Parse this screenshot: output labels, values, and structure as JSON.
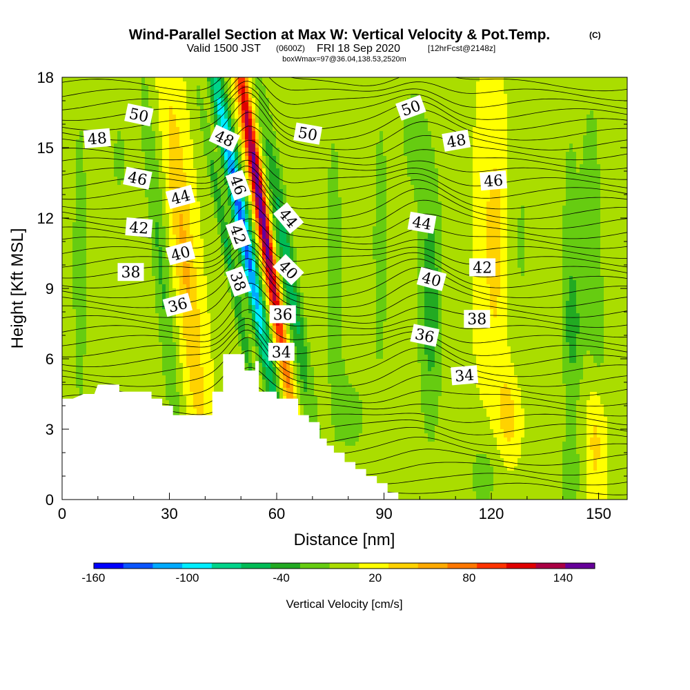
{
  "chart_data": {
    "type": "heatmap",
    "title": "Wind-Parallel Section at Max W: Vertical Velocity & Pot.Temp.",
    "title_mark": "(C)",
    "subtitle_valid": "Valid 1500 JST",
    "subtitle_z": "(0600Z)",
    "subtitle_date": "FRI 18 Sep 2020",
    "subtitle_fcst": "[12hrFcst@2148z]",
    "subtitle2": "boxWmax=97@36.04,138.53,2520m",
    "xlabel": "Distance [nm]",
    "ylabel": "Height [Kft MSL]",
    "xlim": [
      0,
      158
    ],
    "ylim": [
      0,
      18
    ],
    "x_ticks": [
      "0",
      "30",
      "60",
      "90",
      "120",
      "150"
    ],
    "x_tick_values": [
      0,
      30,
      60,
      90,
      120,
      150
    ],
    "y_ticks": [
      "0",
      "3",
      "6",
      "9",
      "12",
      "15",
      "18"
    ],
    "y_tick_values": [
      0,
      3,
      6,
      9,
      12,
      15,
      18
    ],
    "colorbar": {
      "label": "Vertical Velocity [cm/s]",
      "tick_labels": [
        "-160",
        "-100",
        "-40",
        "20",
        "80",
        "140"
      ],
      "tick_values": [
        -160,
        -100,
        -40,
        20,
        80,
        140
      ],
      "levels": [
        -160,
        -140,
        -120,
        -100,
        -80,
        -60,
        -40,
        -20,
        0,
        20,
        40,
        60,
        80,
        100,
        120,
        140,
        160
      ],
      "colors": [
        "#0000ff",
        "#0a55ff",
        "#00aaff",
        "#00eeff",
        "#00d48a",
        "#00bb55",
        "#22aa22",
        "#66cc11",
        "#aadd00",
        "#ffff00",
        "#ffd200",
        "#ffaa00",
        "#ff7700",
        "#ff3300",
        "#e00000",
        "#aa0044",
        "#660099"
      ]
    },
    "contour_labels": [
      {
        "text": "50",
        "x": 21.5,
        "y": 16.4,
        "angle": 12
      },
      {
        "text": "48",
        "x": 9.8,
        "y": 15.4,
        "angle": -5
      },
      {
        "text": "46",
        "x": 21.1,
        "y": 13.7,
        "angle": 12
      },
      {
        "text": "44",
        "x": 33.1,
        "y": 12.9,
        "angle": -15
      },
      {
        "text": "42",
        "x": 21.5,
        "y": 11.6,
        "angle": 5
      },
      {
        "text": "40",
        "x": 33.1,
        "y": 10.5,
        "angle": -15
      },
      {
        "text": "38",
        "x": 19.2,
        "y": 9.7,
        "angle": 0
      },
      {
        "text": "36",
        "x": 32.3,
        "y": 8.3,
        "angle": -15
      },
      {
        "text": "48",
        "x": 45.4,
        "y": 15.4,
        "angle": 25
      },
      {
        "text": "46",
        "x": 49.3,
        "y": 13.4,
        "angle": 70
      },
      {
        "text": "42",
        "x": 49.3,
        "y": 11.3,
        "angle": 70
      },
      {
        "text": "38",
        "x": 49.3,
        "y": 9.3,
        "angle": 70
      },
      {
        "text": "50",
        "x": 68.7,
        "y": 15.6,
        "angle": 10
      },
      {
        "text": "44",
        "x": 63.3,
        "y": 12.0,
        "angle": 50
      },
      {
        "text": "40",
        "x": 63.3,
        "y": 9.8,
        "angle": 45
      },
      {
        "text": "36",
        "x": 61.7,
        "y": 7.9,
        "angle": 0
      },
      {
        "text": "34",
        "x": 61.3,
        "y": 6.3,
        "angle": 0
      },
      {
        "text": "50",
        "x": 97.5,
        "y": 16.7,
        "angle": -20
      },
      {
        "text": "48",
        "x": 110.2,
        "y": 15.3,
        "angle": -10
      },
      {
        "text": "46",
        "x": 120.6,
        "y": 13.6,
        "angle": -5
      },
      {
        "text": "44",
        "x": 100.6,
        "y": 11.8,
        "angle": 10
      },
      {
        "text": "42",
        "x": 117.5,
        "y": 9.9,
        "angle": 0
      },
      {
        "text": "40",
        "x": 103.3,
        "y": 9.4,
        "angle": 15
      },
      {
        "text": "38",
        "x": 116.0,
        "y": 7.7,
        "angle": 0
      },
      {
        "text": "36",
        "x": 101.4,
        "y": 7.0,
        "angle": 12
      },
      {
        "text": "34",
        "x": 112.5,
        "y": 5.3,
        "angle": -5
      }
    ],
    "terrain_profile": [
      [
        0,
        4.3
      ],
      [
        3,
        4.3
      ],
      [
        6,
        4.5
      ],
      [
        9,
        4.5
      ],
      [
        10,
        4.9
      ],
      [
        16,
        4.9
      ],
      [
        16,
        4.6
      ],
      [
        25,
        4.6
      ],
      [
        25,
        4.3
      ],
      [
        28,
        4.3
      ],
      [
        28,
        4.0
      ],
      [
        31,
        4.0
      ],
      [
        31,
        3.6
      ],
      [
        42,
        3.6
      ],
      [
        42,
        4.6
      ],
      [
        45,
        4.6
      ],
      [
        45,
        6.2
      ],
      [
        51,
        6.2
      ],
      [
        51,
        5.5
      ],
      [
        54,
        5.5
      ],
      [
        54,
        5.9
      ],
      [
        55,
        5.9
      ],
      [
        55,
        4.6
      ],
      [
        60,
        4.6
      ],
      [
        60,
        4.3
      ],
      [
        66,
        4.3
      ],
      [
        66,
        3.6
      ],
      [
        69,
        3.6
      ],
      [
        69,
        3.3
      ],
      [
        72,
        3.3
      ],
      [
        72,
        2.6
      ],
      [
        74,
        2.6
      ],
      [
        74,
        2.3
      ],
      [
        76,
        2.3
      ],
      [
        76,
        2.0
      ],
      [
        79,
        2.0
      ],
      [
        79,
        1.6
      ],
      [
        82,
        1.6
      ],
      [
        82,
        1.3
      ],
      [
        85,
        1.3
      ],
      [
        85,
        1.0
      ],
      [
        88,
        1.0
      ],
      [
        88,
        0.7
      ],
      [
        91,
        0.7
      ],
      [
        91,
        0.3
      ],
      [
        94,
        0.3
      ],
      [
        94,
        0
      ],
      [
        0,
        0
      ]
    ],
    "velocity_features": [
      {
        "x": 50.0,
        "y": 12.0,
        "sx": 2.2,
        "sy": 8.0,
        "tilt": -1.2,
        "value": -150
      },
      {
        "x": 55.5,
        "y": 12.5,
        "sx": 1.8,
        "sy": 8.0,
        "tilt": -1.0,
        "value": 160
      },
      {
        "x": 47.0,
        "y": 10.0,
        "sx": 1.5,
        "sy": 7.0,
        "tilt": -1.2,
        "value": -60
      },
      {
        "x": 63.0,
        "y": 10.0,
        "sx": 2.5,
        "sy": 7.0,
        "tilt": -1.0,
        "value": -70
      },
      {
        "x": 34.5,
        "y": 10.0,
        "sx": 3.0,
        "sy": 8.0,
        "tilt": -0.6,
        "value": 45
      },
      {
        "x": 27.5,
        "y": 10.0,
        "sx": 2.5,
        "sy": 9.0,
        "tilt": -0.6,
        "value": -40
      },
      {
        "x": 5.0,
        "y": 10.0,
        "sx": 3.0,
        "sy": 10.0,
        "tilt": 0.0,
        "value": -25
      },
      {
        "x": 16.0,
        "y": 14.5,
        "sx": 4.0,
        "sy": 3.5,
        "tilt": 0.0,
        "value": -20
      },
      {
        "x": 76.0,
        "y": 10.0,
        "sx": 3.5,
        "sy": 9.0,
        "tilt": 0.0,
        "value": -25
      },
      {
        "x": 89.0,
        "y": 11.0,
        "sx": 3.0,
        "sy": 8.0,
        "tilt": 0.0,
        "value": -25
      },
      {
        "x": 103.0,
        "y": 8.5,
        "sx": 3.5,
        "sy": 6.0,
        "tilt": 0.0,
        "value": -50
      },
      {
        "x": 98.0,
        "y": 15.5,
        "sx": 4.0,
        "sy": 3.0,
        "tilt": 0.0,
        "value": -25
      },
      {
        "x": 121.0,
        "y": 11.0,
        "sx": 4.0,
        "sy": 6.0,
        "tilt": 0.0,
        "value": 30
      },
      {
        "x": 128.0,
        "y": 11.0,
        "sx": 4.0,
        "sy": 8.0,
        "tilt": 0.0,
        "value": -20
      },
      {
        "x": 142.0,
        "y": 11.0,
        "sx": 3.0,
        "sy": 7.0,
        "tilt": 0.0,
        "value": -25
      },
      {
        "x": 148.0,
        "y": 13.0,
        "sx": 3.0,
        "sy": 5.0,
        "tilt": 0.0,
        "value": -30
      },
      {
        "x": 143.0,
        "y": 7.0,
        "sx": 3.0,
        "sy": 3.0,
        "tilt": 0.0,
        "value": -30
      },
      {
        "x": 150.0,
        "y": 7.0,
        "sx": 3.0,
        "sy": 3.0,
        "tilt": 0.0,
        "value": -25
      },
      {
        "x": 125.0,
        "y": 3.5,
        "sx": 3.5,
        "sy": 2.0,
        "tilt": 0.0,
        "value": 35
      },
      {
        "x": 149.0,
        "y": 2.5,
        "sx": 2.5,
        "sy": 2.5,
        "tilt": 0.0,
        "value": 30
      },
      {
        "x": 118.0,
        "y": 1.0,
        "sx": 6.0,
        "sy": 2.0,
        "tilt": 0.0,
        "value": -25
      },
      {
        "x": 142.0,
        "y": 1.0,
        "sx": 4.0,
        "sy": 2.0,
        "tilt": 0.0,
        "value": -25
      },
      {
        "x": 82.0,
        "y": 3.5,
        "sx": 5.0,
        "sy": 3.0,
        "tilt": 0.0,
        "value": -20
      }
    ]
  }
}
